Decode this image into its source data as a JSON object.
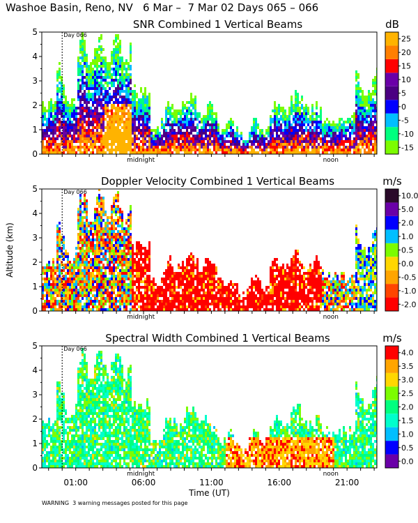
{
  "title": "Washoe Basin, Reno, NV   6 Mar –  7 Mar 02 Days 065 – 066",
  "footer_warning": "WARNING  3 warning messages posted for this page",
  "chart_data": [
    {
      "type": "heatmap",
      "title": "SNR Combined 1 Vertical Beams",
      "unit": "dB",
      "ylabel": "",
      "ylim": [
        0,
        5
      ],
      "y_ticks": [
        "0",
        "1",
        "2",
        "3",
        "4",
        "5"
      ],
      "x_range_hours_ut": [
        22.5,
        47.2
      ],
      "day_marker": "Day 066",
      "midnight_label": "midnight",
      "noon_label": "noon",
      "colorbar": [
        "-15",
        "-10",
        "-5",
        "0",
        "5",
        "10",
        "15",
        "20",
        "25"
      ],
      "colors": [
        "#7cfc00",
        "#00ff7f",
        "#00bfff",
        "#0000ff",
        "#4b0082",
        "#6a00a8",
        "#ff0000",
        "#ff7f00",
        "#ffb300"
      ]
    },
    {
      "type": "heatmap",
      "title": "Doppler Velocity Combined 1 Vertical Beams",
      "unit": "m/s",
      "ylabel": "Altitude (km)",
      "ylim": [
        0,
        5
      ],
      "y_ticks": [
        "0",
        "1",
        "2",
        "3",
        "4",
        "5"
      ],
      "day_marker": "Day 066",
      "midnight_label": "midnight",
      "noon_label": "noon",
      "colorbar": [
        "-2.0",
        "-1.0",
        "-0.5",
        "0.0",
        "0.5",
        "1.0",
        "2.0",
        "5.0",
        "10.0"
      ],
      "colors": [
        "#ff0000",
        "#ff4500",
        "#ffa500",
        "#ffd700",
        "#7cfc00",
        "#00bfff",
        "#0000ff",
        "#6a00a8",
        "#2a0a2a"
      ]
    },
    {
      "type": "heatmap",
      "title": "Spectral Width Combined 1 Vertical Beams",
      "unit": "m/s",
      "ylabel": "",
      "xlabel": "Time (UT)",
      "ylim": [
        0,
        5
      ],
      "y_ticks": [
        "0",
        "1",
        "2",
        "3",
        "4",
        "5"
      ],
      "x_tick_labels": [
        "01:00",
        "06:00",
        "11:00",
        "16:00",
        "21:00"
      ],
      "day_marker": "Day 066",
      "midnight_label": "midnight",
      "noon_label": "noon",
      "colorbar": [
        "0.0",
        "0.5",
        "1.0",
        "1.5",
        "2.0",
        "2.5",
        "3.0",
        "3.5",
        "4.0"
      ],
      "colors": [
        "#6a00a8",
        "#0000ff",
        "#00bfff",
        "#00ffcc",
        "#00ff7f",
        "#7cfc00",
        "#ffd700",
        "#ffa500",
        "#ff0000"
      ]
    }
  ]
}
